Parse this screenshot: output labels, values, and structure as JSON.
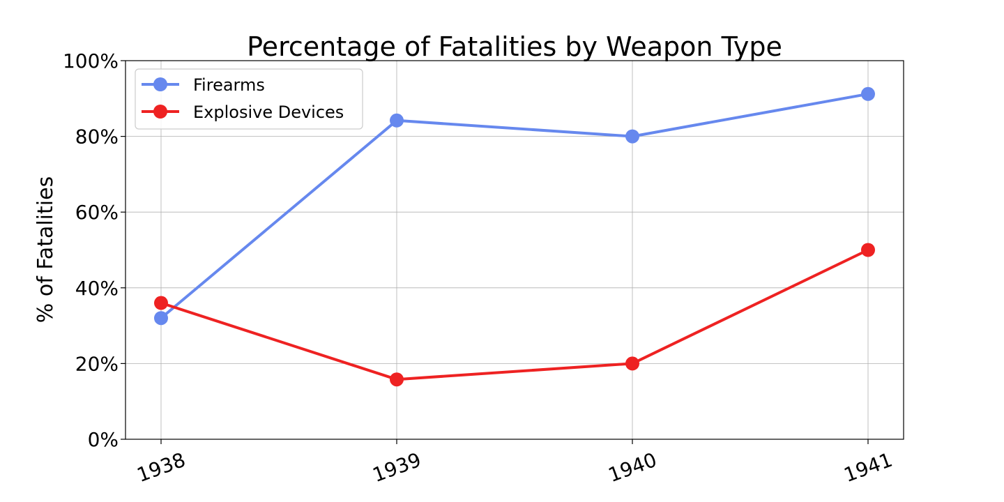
{
  "chart_data": {
    "type": "line",
    "title": "Percentage of Fatalities by Weapon Type",
    "xlabel": "",
    "ylabel": "% of Fatalities",
    "x": [
      "1938",
      "1939",
      "1940",
      "1941"
    ],
    "yticks": [
      "0%",
      "20%",
      "40%",
      "60%",
      "80%",
      "100%"
    ],
    "ylim": [
      0,
      100
    ],
    "grid": true,
    "legend_position": "top-left",
    "series": [
      {
        "name": "Firearms",
        "color": "#6688ee",
        "values": [
          32,
          84.2,
          80,
          91.2
        ]
      },
      {
        "name": "Explosive Devices",
        "color": "#ee2222",
        "values": [
          36,
          15.8,
          20,
          50
        ]
      }
    ]
  }
}
